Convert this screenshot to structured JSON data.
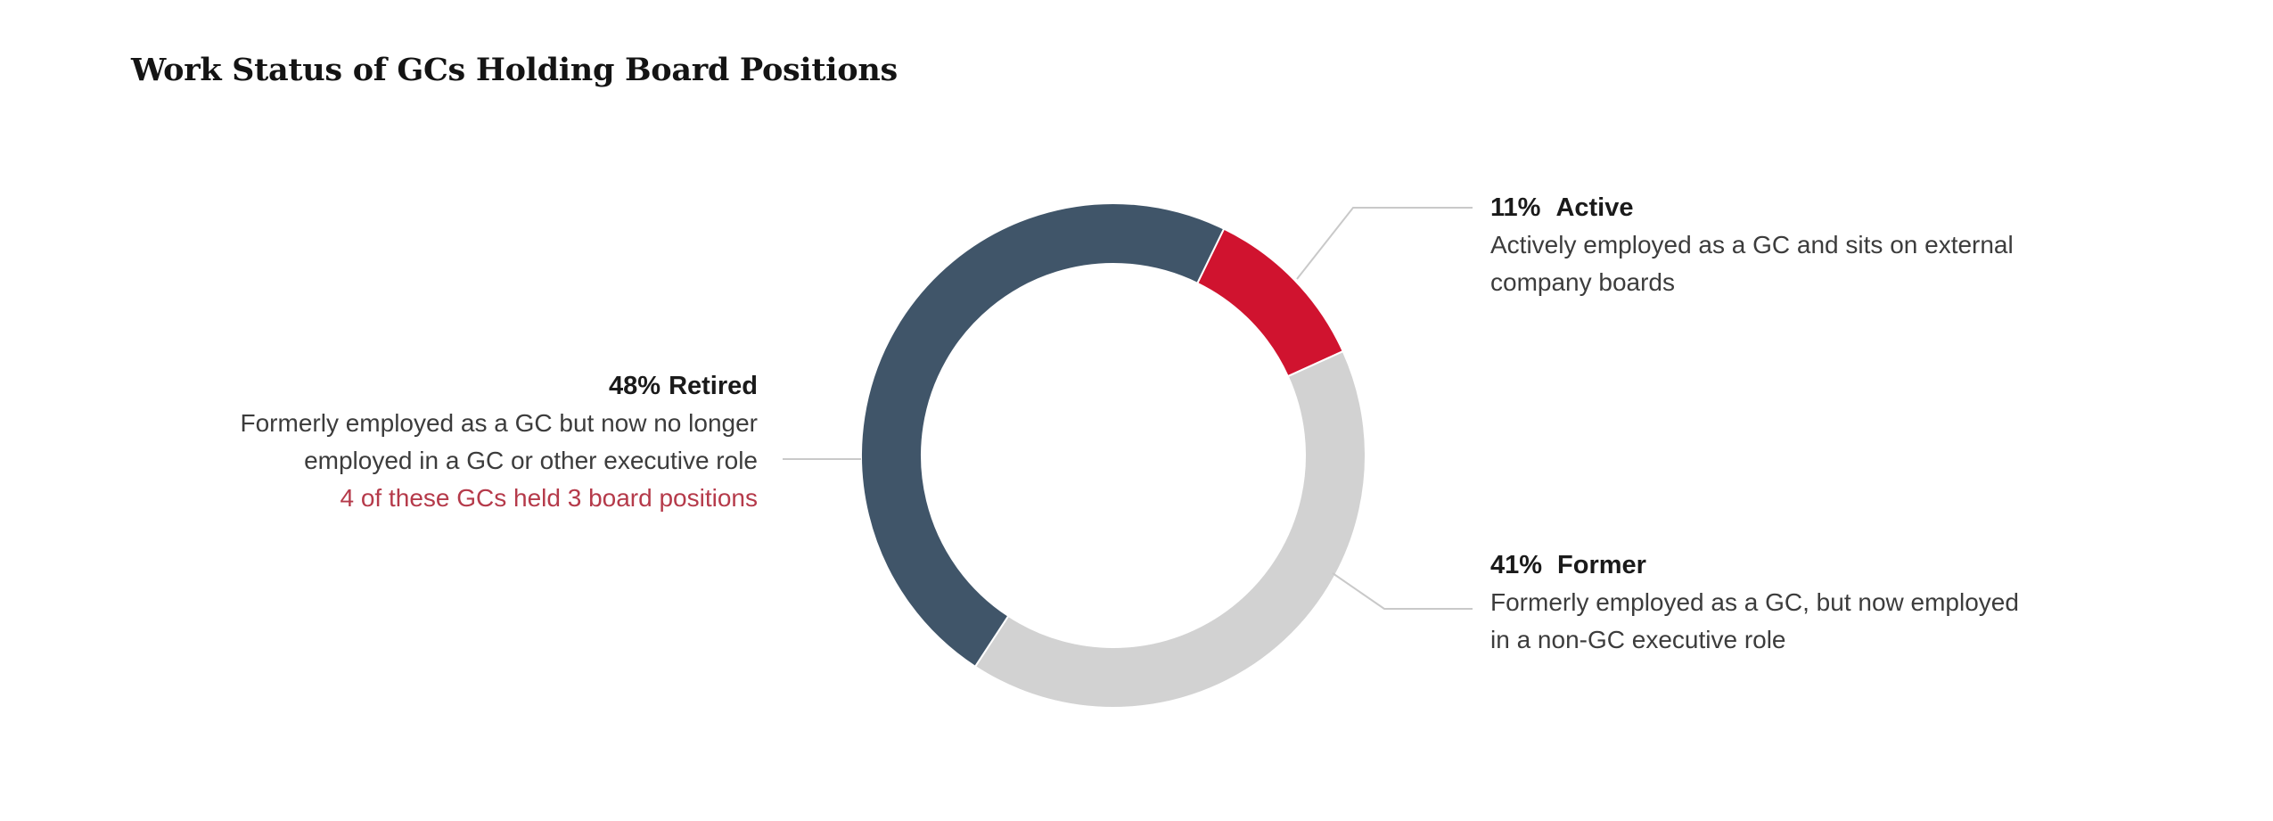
{
  "title": "Work Status of GCs Holding Board Positions",
  "chart_data": {
    "type": "pie",
    "subtype": "donut",
    "title": "Work Status of GCs Holding Board Positions",
    "start_angle_deg": 26,
    "direction": "clockwise",
    "legend_position": "callouts",
    "segments": [
      {
        "label": "Active",
        "value_pct": 11,
        "color": "#d0132f"
      },
      {
        "label": "Former",
        "value_pct": 41,
        "color": "#d2d2d2"
      },
      {
        "label": "Retired",
        "value_pct": 48,
        "color": "#405569"
      }
    ]
  },
  "callouts": {
    "active": {
      "pct": "11%",
      "label": "Active",
      "line1": "Actively employed as a GC and sits on external",
      "line2": "company boards"
    },
    "retired": {
      "pct": "48%",
      "label": "Retired",
      "line1": "Formerly employed as a GC but now no longer",
      "line2": "employed in a GC or other executive role",
      "note": "4 of these GCs held 3 board positions"
    },
    "former": {
      "pct": "41%",
      "label": "Former",
      "line1": "Formerly employed as a GC, but now employed",
      "line2": "in a non-GC executive role"
    }
  },
  "colors": {
    "note_red": "#b53a4a",
    "leader_line": "#c9c9c9",
    "heading_text": "#1a1a1a",
    "body_text": "#3c3c3c",
    "segment_separator": "#ffffff"
  }
}
